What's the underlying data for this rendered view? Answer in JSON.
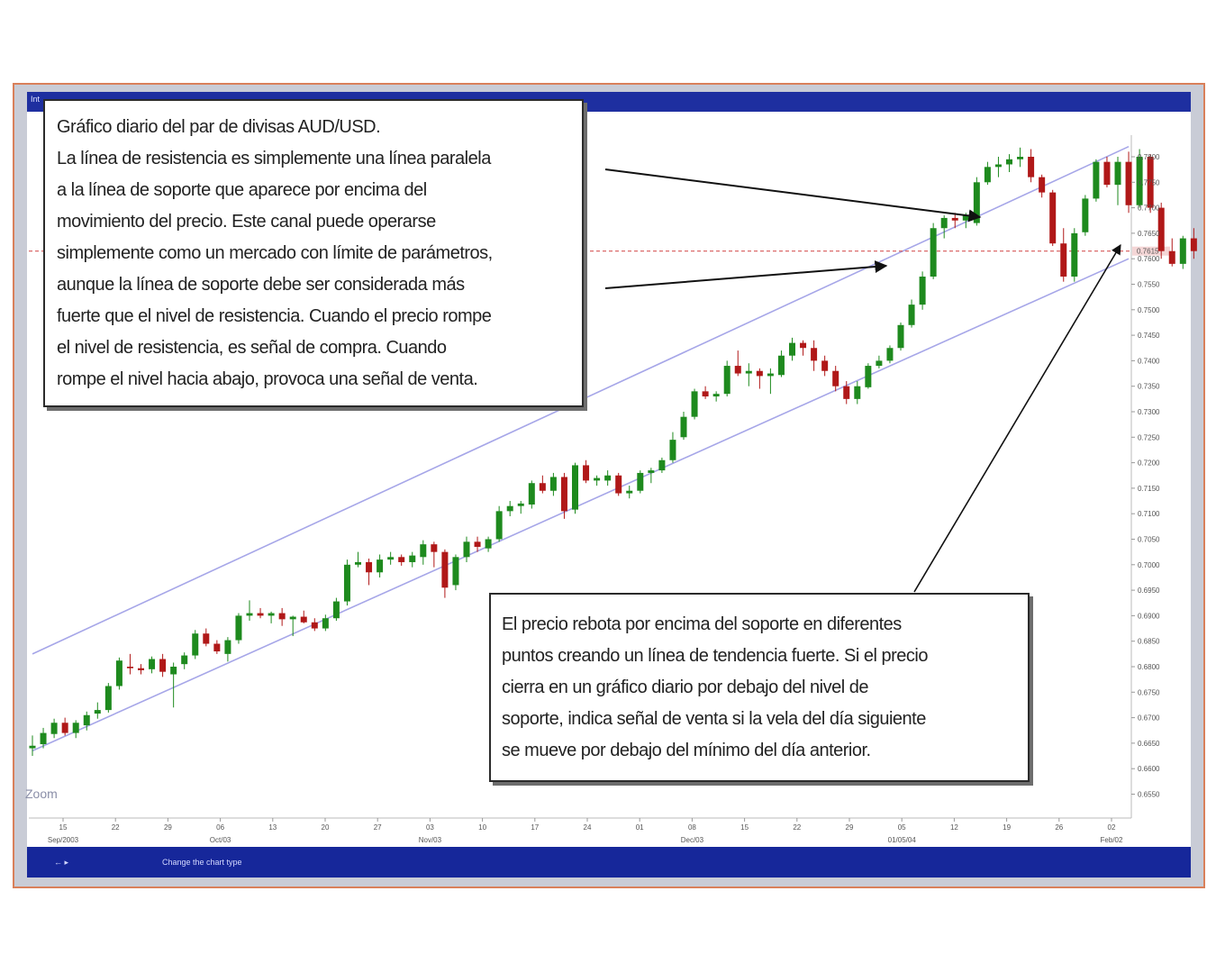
{
  "window": {
    "app_label": "Int",
    "status_left": "←  ▸",
    "status_text": "Change the chart type"
  },
  "annotations": {
    "top_title": "Gráfico diario del par de divisas AUD/USD.",
    "top_lines": [
      "La línea de resistencia es simplemente una línea paralela",
      "a la línea de soporte que aparece por encima del",
      "movimiento del precio. Este canal puede operarse",
      "simplemente como un mercado con límite de parámetros,",
      "aunque la línea de soporte debe ser considerada más",
      "fuerte que el nivel de resistencia. Cuando el precio rompe",
      "el nivel de resistencia, es señal de compra. Cuando",
      "rompe el nivel hacia abajo, provoca una señal de venta."
    ],
    "bottom_lines": [
      "El precio rebota  por encima del soporte en diferentes",
      "puntos creando un línea de tendencia fuerte. Si el precio",
      "cierra en un gráfico diario por debajo del nivel de",
      "soporte, indica señal de venta si la vela del día siguiente",
      "se mueve por debajo del mínimo del día anterior."
    ],
    "zoom_label": "Zoom"
  },
  "colors": {
    "up": "#1e8a1e",
    "down": "#b01818",
    "channel": "#a6a6e8",
    "frame": "#d9805a",
    "bar": "#1e2fa0"
  },
  "chart_data": {
    "type": "candlestick",
    "title": "Gráfico diario del par de divisas AUD/USD.",
    "xlabel": "",
    "ylabel": "",
    "ylim": [
      0.6625,
      0.7825
    ],
    "grid": false,
    "y_ticks": [
      "0.7800",
      "0.7750",
      "0.7700",
      "0.7650",
      "0.7600",
      "0.7550",
      "0.7500",
      "0.7450",
      "0.7400",
      "0.7350",
      "0.7300",
      "0.7250",
      "0.7200",
      "0.7150",
      "0.7100",
      "0.7050",
      "0.7000",
      "0.6950",
      "0.6900",
      "0.6850",
      "0.6800",
      "0.6750",
      "0.6700",
      "0.6650",
      "0.6600",
      "0.6550"
    ],
    "x_ticks": [
      "15",
      "22",
      "29",
      "06",
      "13",
      "20",
      "27",
      "03",
      "10",
      "17",
      "24",
      "01",
      "08",
      "15",
      "22",
      "29",
      "05",
      "12",
      "19",
      "26",
      "02"
    ],
    "x_tick_sublabels": [
      "Sep/2003",
      "",
      "",
      "Oct/03",
      "",
      "",
      "",
      "Nov/03",
      "",
      "",
      "",
      "",
      "Dec/03",
      "",
      "",
      "",
      "01/05/04",
      "",
      "",
      "",
      "Feb/02"
    ],
    "last_price": {
      "value": 0.7615,
      "label": "0.7615"
    },
    "channel": {
      "resistance": {
        "from": {
          "x": 0,
          "y": 0.6825
        },
        "to": {
          "x": 101,
          "y": 0.782
        }
      },
      "support": {
        "from": {
          "x": 0,
          "y": 0.6635
        },
        "to": {
          "x": 101,
          "y": 0.76
        }
      }
    },
    "candles": [
      [
        0.664,
        0.6665,
        0.6625,
        0.6645
      ],
      [
        0.6648,
        0.668,
        0.664,
        0.667
      ],
      [
        0.6668,
        0.6698,
        0.666,
        0.669
      ],
      [
        0.669,
        0.67,
        0.6665,
        0.667
      ],
      [
        0.667,
        0.6695,
        0.666,
        0.669
      ],
      [
        0.6685,
        0.6712,
        0.6675,
        0.6705
      ],
      [
        0.6708,
        0.673,
        0.6698,
        0.6715
      ],
      [
        0.6715,
        0.6768,
        0.671,
        0.6762
      ],
      [
        0.6762,
        0.6818,
        0.6755,
        0.6812
      ],
      [
        0.68,
        0.6825,
        0.6785,
        0.6797
      ],
      [
        0.6797,
        0.6805,
        0.6785,
        0.6793
      ],
      [
        0.6795,
        0.682,
        0.6787,
        0.6815
      ],
      [
        0.6815,
        0.6825,
        0.678,
        0.679
      ],
      [
        0.6785,
        0.6808,
        0.672,
        0.68
      ],
      [
        0.6805,
        0.6828,
        0.6795,
        0.6822
      ],
      [
        0.6822,
        0.6872,
        0.6815,
        0.6865
      ],
      [
        0.6865,
        0.6875,
        0.684,
        0.6845
      ],
      [
        0.6845,
        0.6852,
        0.6825,
        0.683
      ],
      [
        0.6825,
        0.6858,
        0.681,
        0.6852
      ],
      [
        0.6852,
        0.6905,
        0.6845,
        0.69
      ],
      [
        0.69,
        0.693,
        0.689,
        0.6905
      ],
      [
        0.6905,
        0.6915,
        0.6895,
        0.69
      ],
      [
        0.69,
        0.6908,
        0.6885,
        0.6905
      ],
      [
        0.6905,
        0.6915,
        0.688,
        0.6893
      ],
      [
        0.6893,
        0.69,
        0.686,
        0.6898
      ],
      [
        0.6898,
        0.691,
        0.6885,
        0.6887
      ],
      [
        0.6887,
        0.6895,
        0.687,
        0.6875
      ],
      [
        0.6875,
        0.6902,
        0.687,
        0.6895
      ],
      [
        0.6895,
        0.6935,
        0.689,
        0.6928
      ],
      [
        0.6928,
        0.701,
        0.692,
        0.7
      ],
      [
        0.7,
        0.7025,
        0.6995,
        0.7005
      ],
      [
        0.7005,
        0.7012,
        0.696,
        0.6985
      ],
      [
        0.6985,
        0.702,
        0.6975,
        0.701
      ],
      [
        0.701,
        0.7025,
        0.7,
        0.7015
      ],
      [
        0.7015,
        0.702,
        0.6998,
        0.7005
      ],
      [
        0.7005,
        0.7025,
        0.6995,
        0.7018
      ],
      [
        0.7015,
        0.7048,
        0.7,
        0.704
      ],
      [
        0.704,
        0.7045,
        0.6995,
        0.7025
      ],
      [
        0.7025,
        0.703,
        0.6935,
        0.6955
      ],
      [
        0.696,
        0.702,
        0.695,
        0.7015
      ],
      [
        0.7015,
        0.7055,
        0.7005,
        0.7045
      ],
      [
        0.7045,
        0.7055,
        0.7025,
        0.7035
      ],
      [
        0.7032,
        0.7055,
        0.7025,
        0.705
      ],
      [
        0.705,
        0.7115,
        0.7045,
        0.7105
      ],
      [
        0.7105,
        0.7125,
        0.7095,
        0.7115
      ],
      [
        0.7115,
        0.7125,
        0.71,
        0.712
      ],
      [
        0.7118,
        0.7165,
        0.711,
        0.716
      ],
      [
        0.716,
        0.7175,
        0.714,
        0.7145
      ],
      [
        0.7145,
        0.718,
        0.7135,
        0.7172
      ],
      [
        0.7172,
        0.718,
        0.709,
        0.7105
      ],
      [
        0.7108,
        0.72,
        0.71,
        0.7195
      ],
      [
        0.7195,
        0.7205,
        0.716,
        0.7165
      ],
      [
        0.7165,
        0.7175,
        0.7155,
        0.717
      ],
      [
        0.7165,
        0.7185,
        0.7155,
        0.7175
      ],
      [
        0.7175,
        0.718,
        0.7135,
        0.714
      ],
      [
        0.714,
        0.7155,
        0.713,
        0.7145
      ],
      [
        0.7145,
        0.7185,
        0.714,
        0.718
      ],
      [
        0.718,
        0.719,
        0.716,
        0.7185
      ],
      [
        0.7185,
        0.721,
        0.718,
        0.7205
      ],
      [
        0.7205,
        0.726,
        0.72,
        0.7245
      ],
      [
        0.725,
        0.73,
        0.7245,
        0.729
      ],
      [
        0.729,
        0.7345,
        0.7285,
        0.734
      ],
      [
        0.734,
        0.735,
        0.7325,
        0.733
      ],
      [
        0.733,
        0.734,
        0.732,
        0.7335
      ],
      [
        0.7335,
        0.74,
        0.733,
        0.739
      ],
      [
        0.739,
        0.742,
        0.737,
        0.7375
      ],
      [
        0.7375,
        0.7395,
        0.735,
        0.738
      ],
      [
        0.738,
        0.7385,
        0.7345,
        0.737
      ],
      [
        0.737,
        0.7385,
        0.7335,
        0.7375
      ],
      [
        0.7372,
        0.742,
        0.7368,
        0.741
      ],
      [
        0.741,
        0.7445,
        0.74,
        0.7435
      ],
      [
        0.7435,
        0.744,
        0.741,
        0.7425
      ],
      [
        0.7425,
        0.744,
        0.738,
        0.74
      ],
      [
        0.74,
        0.741,
        0.737,
        0.738
      ],
      [
        0.738,
        0.739,
        0.734,
        0.735
      ],
      [
        0.735,
        0.736,
        0.7315,
        0.7325
      ],
      [
        0.7325,
        0.736,
        0.7315,
        0.735
      ],
      [
        0.7348,
        0.7395,
        0.7345,
        0.739
      ],
      [
        0.739,
        0.741,
        0.7385,
        0.74
      ],
      [
        0.74,
        0.743,
        0.7395,
        0.7425
      ],
      [
        0.7425,
        0.7475,
        0.742,
        0.747
      ],
      [
        0.747,
        0.752,
        0.7465,
        0.751
      ],
      [
        0.751,
        0.7575,
        0.75,
        0.7565
      ],
      [
        0.7565,
        0.767,
        0.756,
        0.766
      ],
      [
        0.766,
        0.7685,
        0.764,
        0.768
      ],
      [
        0.768,
        0.769,
        0.766,
        0.7675
      ],
      [
        0.7675,
        0.769,
        0.766,
        0.7685
      ],
      [
        0.767,
        0.776,
        0.7665,
        0.775
      ],
      [
        0.775,
        0.779,
        0.7745,
        0.778
      ],
      [
        0.778,
        0.78,
        0.776,
        0.7785
      ],
      [
        0.7785,
        0.7805,
        0.777,
        0.7795
      ],
      [
        0.7795,
        0.7818,
        0.778,
        0.78
      ],
      [
        0.78,
        0.7815,
        0.775,
        0.776
      ],
      [
        0.776,
        0.7765,
        0.772,
        0.773
      ],
      [
        0.773,
        0.7735,
        0.7625,
        0.763
      ],
      [
        0.763,
        0.766,
        0.7555,
        0.7565
      ],
      [
        0.7565,
        0.766,
        0.7555,
        0.765
      ],
      [
        0.7652,
        0.7725,
        0.7645,
        0.7718
      ],
      [
        0.7718,
        0.7795,
        0.7712,
        0.779
      ],
      [
        0.779,
        0.78,
        0.774,
        0.7745
      ],
      [
        0.7745,
        0.78,
        0.7705,
        0.779
      ],
      [
        0.779,
        0.781,
        0.769,
        0.7705
      ],
      [
        0.7705,
        0.7815,
        0.77,
        0.78
      ],
      [
        0.78,
        0.7805,
        0.769,
        0.77
      ],
      [
        0.77,
        0.771,
        0.76,
        0.7615
      ],
      [
        0.7615,
        0.764,
        0.7585,
        0.759
      ],
      [
        0.759,
        0.7645,
        0.758,
        0.764
      ],
      [
        0.764,
        0.766,
        0.76,
        0.7615
      ]
    ]
  }
}
